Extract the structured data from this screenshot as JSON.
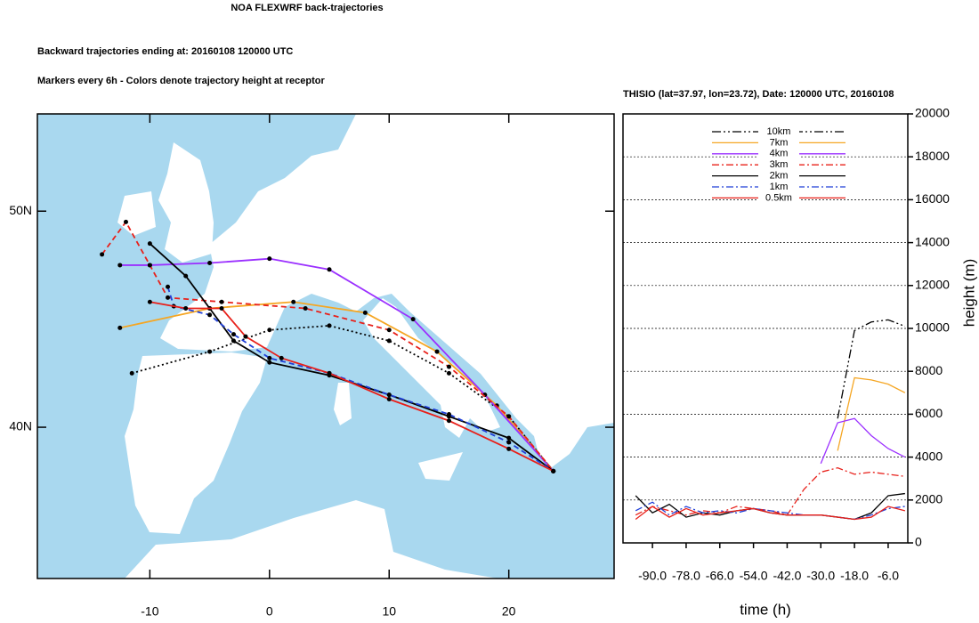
{
  "chart_data": [
    {
      "type": "map",
      "title": "NOA FLEXWRF back-trajectories",
      "subtitle": "Backward trajectories ending at: 20160108  120000 UTC",
      "caption": "Markers every 6h - Colors denote trajectory height at receptor",
      "xlim": [
        -19.4,
        28.8
      ],
      "ylim": [
        33.0,
        54.5
      ],
      "xticks": [
        -10,
        0,
        10,
        20
      ],
      "yticks": [
        {
          "value": 40,
          "label": "40N"
        },
        {
          "value": 50,
          "label": "50N"
        }
      ],
      "series": [
        {
          "color": "#000000",
          "line_style": "dot",
          "x": [
            -11.5,
            -5,
            0,
            5,
            10,
            15,
            20,
            23.72
          ],
          "values": [
            42.5,
            43.5,
            44.5,
            44.7,
            44,
            42.5,
            40.5,
            37.97
          ]
        },
        {
          "color": "#f5a623",
          "line_style": "solid",
          "x": [
            -12.5,
            -5,
            2,
            8,
            14,
            19,
            23.72
          ],
          "values": [
            44.6,
            45.5,
            45.8,
            45.3,
            43.5,
            41,
            37.97
          ]
        },
        {
          "color": "#9b30ff",
          "line_style": "solid",
          "x": [
            -12.5,
            -10,
            -5,
            0,
            5,
            12,
            18,
            23.72
          ],
          "values": [
            47.5,
            47.5,
            47.6,
            47.8,
            47.3,
            45,
            41.5,
            37.97
          ]
        },
        {
          "color": "#e8201a",
          "line_style": "dash",
          "x": [
            -14,
            -12,
            -10,
            -8.5,
            -4,
            3,
            10,
            15,
            20,
            23.72
          ],
          "values": [
            48,
            49.5,
            47.5,
            46,
            45.8,
            45.5,
            44.5,
            42.8,
            40.5,
            37.97
          ]
        },
        {
          "color": "#000000",
          "line_style": "solid",
          "x": [
            -10,
            -7,
            -5,
            -3,
            0,
            5,
            10,
            15,
            20,
            23.72
          ],
          "values": [
            48.5,
            47,
            45.5,
            44,
            43,
            42.4,
            41.5,
            40.5,
            39.5,
            37.97
          ]
        },
        {
          "color": "#1f3fd8",
          "line_style": "dash",
          "x": [
            -8.5,
            -8,
            -5,
            -3,
            0,
            5,
            10,
            15,
            20,
            23.72
          ],
          "values": [
            46.5,
            45.6,
            45.2,
            44.3,
            43.2,
            42.5,
            41.5,
            40.6,
            39.3,
            37.97
          ]
        },
        {
          "color": "#e8201a",
          "line_style": "solid",
          "x": [
            -10,
            -7,
            -4,
            -2,
            1,
            5,
            10,
            15,
            20,
            23.72
          ],
          "values": [
            45.8,
            45.5,
            45.5,
            44.2,
            43.2,
            42.5,
            41.3,
            40.3,
            39,
            37.97
          ]
        }
      ]
    },
    {
      "type": "line",
      "title": "THISIO (lat=37.97,  lon=23.72), Date: 120000 UTC, 20160108",
      "x_label": "time (h)",
      "y_label": "height (m)",
      "xlim": [
        -100.5,
        1
      ],
      "ylim": [
        0,
        20000
      ],
      "xticks": [
        {
          "value": -90,
          "label": "-90.0"
        },
        {
          "value": -78,
          "label": "-78.0"
        },
        {
          "value": -66,
          "label": "-66.0"
        },
        {
          "value": -54,
          "label": "-54.0"
        },
        {
          "value": -42,
          "label": "-42.0"
        },
        {
          "value": -30,
          "label": "-30.0"
        },
        {
          "value": -18,
          "label": "-18.0"
        },
        {
          "value": -6,
          "label": "-6.0"
        }
      ],
      "yticks": [
        0,
        2000,
        4000,
        6000,
        8000,
        10000,
        12000,
        14000,
        16000,
        18000,
        20000
      ],
      "grid": true,
      "x": [
        -96,
        -90,
        -84,
        -78,
        -72,
        -66,
        -60,
        -54,
        -48,
        -42,
        -36,
        -30,
        -24,
        -18,
        -12,
        -6,
        0
      ],
      "series": [
        {
          "name": "10km",
          "color": "#000000",
          "line_style": "dashdotdot",
          "values": [
            null,
            null,
            null,
            null,
            null,
            null,
            null,
            null,
            null,
            null,
            null,
            null,
            5800,
            9900,
            10300,
            10400,
            10100
          ]
        },
        {
          "name": "7km",
          "color": "#f5a623",
          "line_style": "solid",
          "values": [
            null,
            null,
            null,
            null,
            null,
            null,
            null,
            null,
            null,
            null,
            null,
            null,
            4300,
            7700,
            7600,
            7400,
            7000
          ]
        },
        {
          "name": "4km",
          "color": "#9b30ff",
          "line_style": "solid",
          "values": [
            null,
            null,
            null,
            null,
            null,
            null,
            null,
            null,
            null,
            null,
            null,
            3700,
            5600,
            5800,
            5000,
            4400,
            4000
          ]
        },
        {
          "name": "3km",
          "color": "#e8201a",
          "line_style": "dashdot",
          "values": [
            1300,
            1700,
            1500,
            1300,
            1500,
            1400,
            1700,
            1600,
            1500,
            1300,
            2500,
            3300,
            3500,
            3200,
            3300,
            3200,
            3100
          ]
        },
        {
          "name": "2km",
          "color": "#000000",
          "line_style": "solid",
          "values": [
            2200,
            1400,
            1800,
            1200,
            1400,
            1300,
            1500,
            1600,
            1400,
            1300,
            1300,
            1300,
            1200,
            1100,
            1400,
            2200,
            2300
          ]
        },
        {
          "name": "1km",
          "color": "#1f3fd8",
          "line_style": "dashdot",
          "values": [
            1500,
            1900,
            1300,
            1700,
            1400,
            1500,
            1400,
            1600,
            1500,
            1400,
            1300,
            1300,
            1200,
            1100,
            1300,
            1600,
            1700
          ]
        },
        {
          "name": "0.5km",
          "color": "#e8201a",
          "line_style": "solid",
          "values": [
            1100,
            1700,
            1200,
            1600,
            1300,
            1400,
            1500,
            1600,
            1400,
            1300,
            1300,
            1300,
            1200,
            1100,
            1200,
            1700,
            1500
          ]
        }
      ]
    }
  ]
}
